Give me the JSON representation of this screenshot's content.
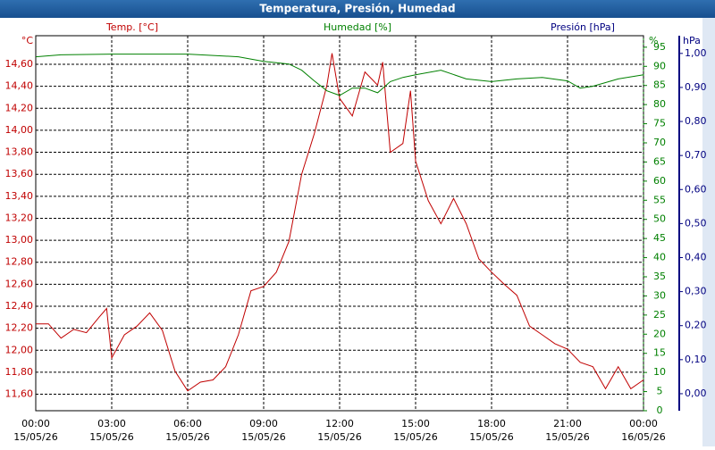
{
  "chart_data": {
    "type": "line",
    "title": "Temperatura, Presión, Humedad",
    "ylabel": "Temp. [°C]",
    "yunit": "°C",
    "y2label": "Humedad [%]",
    "y2unit": "%",
    "y3label": "Presión [hPa]",
    "y3unit": "hPa",
    "xlim": [
      0,
      24
    ],
    "xticks": [
      {
        "value": 0,
        "label": "00:00",
        "date": "15/05/26"
      },
      {
        "value": 3,
        "label": "03:00",
        "date": "15/05/26"
      },
      {
        "value": 6,
        "label": "06:00",
        "date": "15/05/26"
      },
      {
        "value": 9,
        "label": "09:00",
        "date": "15/05/26"
      },
      {
        "value": 12,
        "label": "12:00",
        "date": "15/05/26"
      },
      {
        "value": 15,
        "label": "15:00",
        "date": "15/05/26"
      },
      {
        "value": 18,
        "label": "18:00",
        "date": "15/05/26"
      },
      {
        "value": 21,
        "label": "21:00",
        "date": "15/05/26"
      },
      {
        "value": 24,
        "label": "00:00",
        "date": "16/05/26"
      }
    ],
    "ylim": [
      11.45,
      14.86
    ],
    "yticks": [
      {
        "value": 11.6,
        "label": "11,60"
      },
      {
        "value": 11.8,
        "label": "11,80"
      },
      {
        "value": 12.0,
        "label": "12,00"
      },
      {
        "value": 12.2,
        "label": "12,20"
      },
      {
        "value": 12.4,
        "label": "12,40"
      },
      {
        "value": 12.6,
        "label": "12,60"
      },
      {
        "value": 12.8,
        "label": "12,80"
      },
      {
        "value": 13.0,
        "label": "13,00"
      },
      {
        "value": 13.2,
        "label": "13,20"
      },
      {
        "value": 13.4,
        "label": "13,40"
      },
      {
        "value": 13.6,
        "label": "13,60"
      },
      {
        "value": 13.8,
        "label": "13,80"
      },
      {
        "value": 14.0,
        "label": "14,00"
      },
      {
        "value": 14.2,
        "label": "14,20"
      },
      {
        "value": 14.4,
        "label": "14,40"
      },
      {
        "value": 14.6,
        "label": "14,60"
      }
    ],
    "y2lim": [
      0,
      98
    ],
    "y2ticks": [
      0,
      5,
      10,
      15,
      20,
      25,
      30,
      35,
      40,
      45,
      50,
      55,
      60,
      65,
      70,
      75,
      80,
      85,
      90,
      95
    ],
    "y3lim": [
      -0.05,
      1.052
    ],
    "y3ticks": [
      {
        "value": 0,
        "label": "0,00"
      },
      {
        "value": 0.1,
        "label": "0,10"
      },
      {
        "value": 0.2,
        "label": "0,20"
      },
      {
        "value": 0.3,
        "label": "0,30"
      },
      {
        "value": 0.4,
        "label": "0,40"
      },
      {
        "value": 0.5,
        "label": "0,50"
      },
      {
        "value": 0.6,
        "label": "0,60"
      },
      {
        "value": 0.7,
        "label": "0,70"
      },
      {
        "value": 0.8,
        "label": "0,80"
      },
      {
        "value": 0.9,
        "label": "0,90"
      },
      {
        "value": 1.0,
        "label": "1,00"
      }
    ],
    "grid": true,
    "colors": {
      "y": "#c00000",
      "y2": "#008000",
      "y3": "#000080"
    },
    "series": [
      {
        "name": "Temperatura",
        "color": "#c00000",
        "axis": "y",
        "x": [
          0,
          0.5,
          1,
          1.5,
          2,
          2.5,
          2.8,
          3,
          3.5,
          4,
          4.5,
          5,
          5.5,
          6,
          6.5,
          7,
          7.5,
          8,
          8.5,
          9,
          9.5,
          10,
          10.5,
          11,
          11.5,
          11.7,
          12,
          12.5,
          13,
          13.5,
          13.7,
          14,
          14.5,
          14.8,
          15,
          15.5,
          16,
          16.5,
          17,
          17.5,
          18,
          18.5,
          19,
          19.5,
          20,
          20.5,
          21,
          21.5,
          22,
          22.5,
          23,
          23.5,
          24
        ],
        "values": [
          12.24,
          12.24,
          12.11,
          12.19,
          12.16,
          12.3,
          12.38,
          11.93,
          12.14,
          12.22,
          12.34,
          12.18,
          11.81,
          11.63,
          11.71,
          11.73,
          11.85,
          12.14,
          12.54,
          12.58,
          12.71,
          12.99,
          13.6,
          13.97,
          14.41,
          14.7,
          14.29,
          14.13,
          14.53,
          14.41,
          14.62,
          13.8,
          13.88,
          14.36,
          13.72,
          13.36,
          13.15,
          13.38,
          13.15,
          12.83,
          12.71,
          12.6,
          12.5,
          12.22,
          12.14,
          12.06,
          12.01,
          11.89,
          11.85,
          11.65,
          11.85,
          11.65,
          11.73
        ]
      },
      {
        "name": "Humedad",
        "color": "#008000",
        "axis": "y2",
        "x": [
          0,
          1,
          3,
          6,
          8,
          9,
          10,
          10.5,
          11,
          11.5,
          12,
          12.5,
          13,
          13.5,
          14,
          14.5,
          15,
          16,
          17,
          18,
          19,
          20,
          21,
          21.5,
          22,
          23,
          24
        ],
        "values": [
          92.5,
          93,
          93.2,
          93.2,
          92.5,
          91.3,
          90.6,
          89,
          86.2,
          83.6,
          82.4,
          84.3,
          84.3,
          83.1,
          86,
          87.1,
          87.8,
          89,
          86.7,
          86,
          86.7,
          87.1,
          86.2,
          84.3,
          84.8,
          86.7,
          87.8
        ]
      }
    ]
  }
}
